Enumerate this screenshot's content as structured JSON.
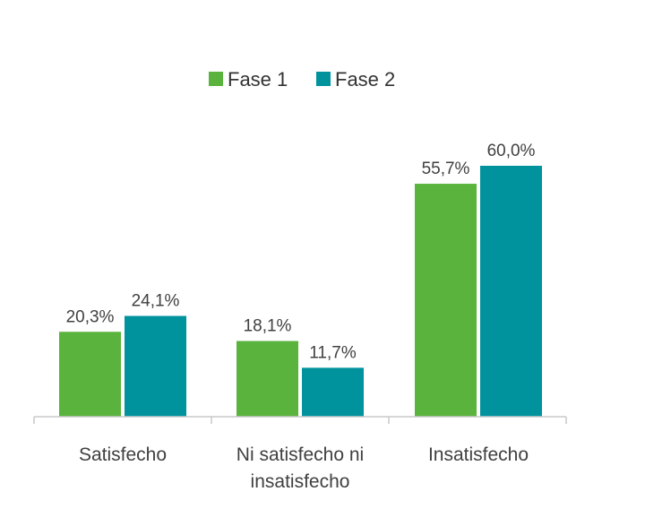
{
  "chart_data": {
    "type": "bar",
    "categories": [
      [
        "Satisfecho"
      ],
      [
        "Ni satisfecho ni",
        "insatisfecho"
      ],
      [
        "Insatisfecho"
      ]
    ],
    "series": [
      {
        "name": "Fase 1",
        "color": "#59b33c",
        "values": [
          20.3,
          18.1,
          55.7
        ],
        "labels": [
          "20,3%",
          "18,1%",
          "55,7%"
        ]
      },
      {
        "name": "Fase 2",
        "color": "#00939e",
        "values": [
          24.1,
          11.7,
          60.0
        ],
        "labels": [
          "24,1%",
          "11,7%",
          "60,0%"
        ]
      }
    ],
    "legend_position": "top",
    "ylim": [
      0,
      60
    ],
    "grid": false
  }
}
